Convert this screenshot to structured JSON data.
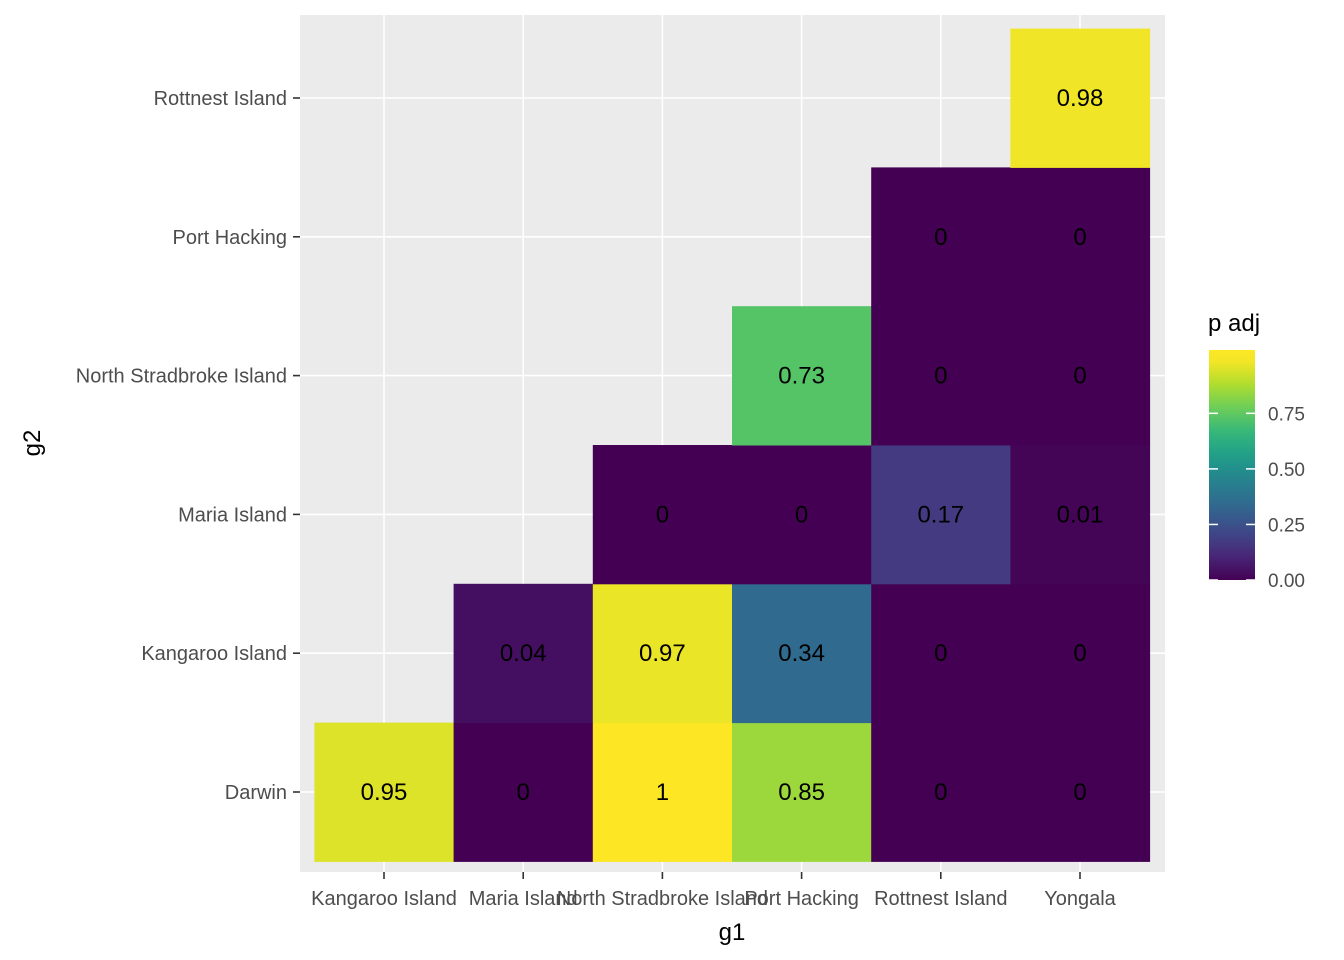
{
  "chart_data": {
    "type": "heatmap",
    "xlabel": "g1",
    "ylabel": "g2",
    "x_categories": [
      "Kangaroo Island",
      "Maria Island",
      "North Stradbroke Island",
      "Port Hacking",
      "Rottnest Island",
      "Yongala"
    ],
    "y_categories": [
      "Darwin",
      "Kangaroo Island",
      "Maria Island",
      "North Stradbroke Island",
      "Port Hacking",
      "Rottnest Island"
    ],
    "cells": [
      {
        "x": "Kangaroo Island",
        "y": "Darwin",
        "value": 0.95,
        "label": "0.95"
      },
      {
        "x": "Maria Island",
        "y": "Darwin",
        "value": 0.0,
        "label": "0"
      },
      {
        "x": "North Stradbroke Island",
        "y": "Darwin",
        "value": 1.0,
        "label": "1"
      },
      {
        "x": "Port Hacking",
        "y": "Darwin",
        "value": 0.85,
        "label": "0.85"
      },
      {
        "x": "Rottnest Island",
        "y": "Darwin",
        "value": 0.0,
        "label": "0"
      },
      {
        "x": "Yongala",
        "y": "Darwin",
        "value": 0.0,
        "label": "0"
      },
      {
        "x": "Maria Island",
        "y": "Kangaroo Island",
        "value": 0.04,
        "label": "0.04"
      },
      {
        "x": "North Stradbroke Island",
        "y": "Kangaroo Island",
        "value": 0.97,
        "label": "0.97"
      },
      {
        "x": "Port Hacking",
        "y": "Kangaroo Island",
        "value": 0.34,
        "label": "0.34"
      },
      {
        "x": "Rottnest Island",
        "y": "Kangaroo Island",
        "value": 0.0,
        "label": "0"
      },
      {
        "x": "Yongala",
        "y": "Kangaroo Island",
        "value": 0.0,
        "label": "0"
      },
      {
        "x": "North Stradbroke Island",
        "y": "Maria Island",
        "value": 0.0,
        "label": "0"
      },
      {
        "x": "Port Hacking",
        "y": "Maria Island",
        "value": 0.0,
        "label": "0"
      },
      {
        "x": "Rottnest Island",
        "y": "Maria Island",
        "value": 0.17,
        "label": "0.17"
      },
      {
        "x": "Yongala",
        "y": "Maria Island",
        "value": 0.01,
        "label": "0.01"
      },
      {
        "x": "Port Hacking",
        "y": "North Stradbroke Island",
        "value": 0.73,
        "label": "0.73"
      },
      {
        "x": "Rottnest Island",
        "y": "North Stradbroke Island",
        "value": 0.0,
        "label": "0"
      },
      {
        "x": "Yongala",
        "y": "North Stradbroke Island",
        "value": 0.0,
        "label": "0"
      },
      {
        "x": "Rottnest Island",
        "y": "Port Hacking",
        "value": 0.0,
        "label": "0"
      },
      {
        "x": "Yongala",
        "y": "Port Hacking",
        "value": 0.0,
        "label": "0"
      },
      {
        "x": "Yongala",
        "y": "Rottnest Island",
        "value": 0.98,
        "label": "0.98"
      }
    ],
    "legend": {
      "title": "p adj",
      "placement": "right",
      "breaks": [
        0.0,
        0.25,
        0.5,
        0.75
      ],
      "break_labels": [
        "0.00",
        "0.25",
        "0.50",
        "0.75"
      ],
      "range": [
        0,
        1
      ],
      "colormap": "viridis"
    },
    "panel_background": "#ebebeb",
    "gridline_color": "#ffffff",
    "grid": true
  }
}
